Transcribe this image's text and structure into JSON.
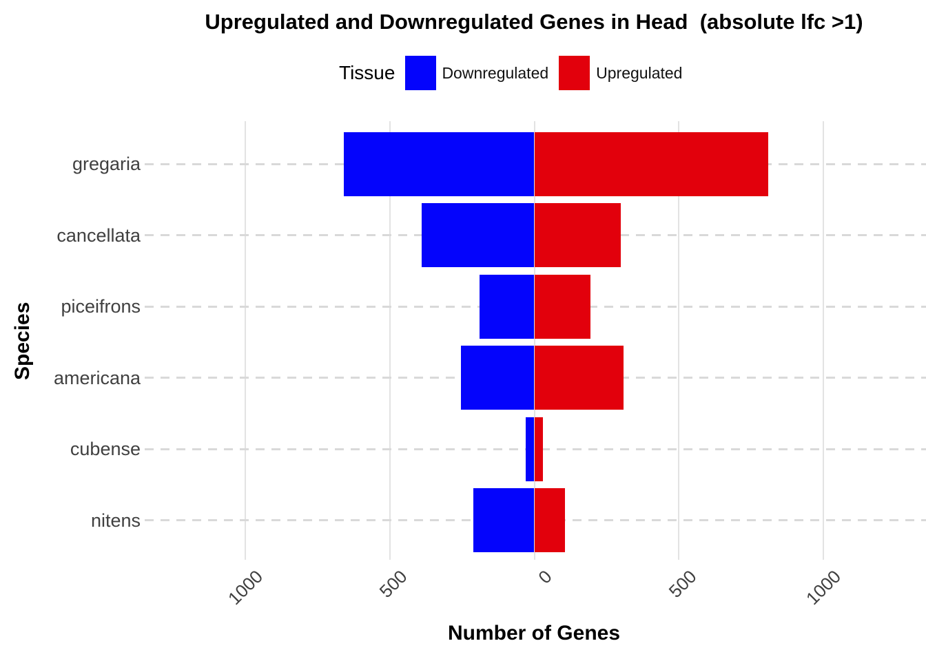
{
  "title": "Upregulated and Downregulated Genes in Head  (absolute lfc >1)",
  "legend": {
    "title": "Tissue",
    "items": [
      {
        "label": "Downregulated",
        "color": "#0404FC"
      },
      {
        "label": "Upregulated",
        "color": "#E2000C"
      }
    ]
  },
  "axes": {
    "x_title": "Number of Genes",
    "y_title": "Species"
  },
  "colors": {
    "background": "#FFFFFF",
    "downregulated": "#0404FC",
    "upregulated": "#E2000C",
    "grid_solid": "#E3E3E3",
    "grid_dashed": "#D9D9D9",
    "axis_text": "#404040"
  },
  "chart_data": {
    "type": "bar",
    "orientation": "horizontal-diverging",
    "title": "Upregulated and Downregulated Genes in Head  (absolute lfc >1)",
    "xlabel": "Number of Genes",
    "ylabel": "Species",
    "legend_title": "Tissue",
    "legend_position": "top",
    "categories": [
      "gregaria",
      "cancellata",
      "piceifrons",
      "americana",
      "cubense",
      "nitens"
    ],
    "series": [
      {
        "name": "Downregulated",
        "direction": "negative",
        "color": "#0404FC",
        "values": [
          660,
          390,
          190,
          255,
          30,
          210
        ]
      },
      {
        "name": "Upregulated",
        "direction": "positive",
        "color": "#E2000C",
        "values": [
          810,
          300,
          195,
          310,
          30,
          105
        ]
      }
    ],
    "x_ticks": [
      {
        "value": -1000,
        "label": "1000"
      },
      {
        "value": -500,
        "label": "500"
      },
      {
        "value": 0,
        "label": "0"
      },
      {
        "value": 500,
        "label": "500"
      },
      {
        "value": 1000,
        "label": "1000"
      }
    ],
    "xlim": [
      -1360,
      1360
    ],
    "grid": {
      "vertical": "solid",
      "horizontal": "dashed"
    }
  }
}
